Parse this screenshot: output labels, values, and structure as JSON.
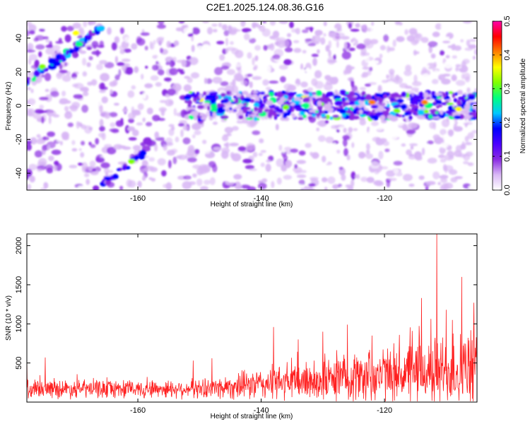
{
  "title": "C2E1.2025.124.08.36.G16",
  "chart_data": [
    {
      "type": "heatmap",
      "xlabel": "Height of straight line (km)",
      "ylabel": "Frequency (Hz)",
      "xlim": [
        -178,
        -105
      ],
      "ylim": [
        -50,
        50
      ],
      "xticks": [
        -160,
        -140,
        -120
      ],
      "yticks": [
        -40,
        -20,
        0,
        20,
        40
      ],
      "xtick_labels": [
        "-160",
        "-140",
        "-120"
      ],
      "ytick_labels": [
        "-40",
        "-20",
        "0",
        "20",
        "40"
      ],
      "colorbar": {
        "label": "Normalized spectral amplitude",
        "range": [
          0,
          0.5
        ],
        "ticks": [
          0,
          0.1,
          0.2,
          0.3,
          0.4,
          0.5
        ],
        "tick_labels": [
          "0.0",
          "0.1",
          "0.2",
          "0.3",
          "0.4",
          "0.5"
        ],
        "colors": [
          "#ffffff",
          "#d9b8f5",
          "#8a2be2",
          "#4b00ff",
          "#0000ff",
          "#00c8ff",
          "#00ff80",
          "#7fff00",
          "#ffff00",
          "#ff8000",
          "#ff0000",
          "#ff00aa"
        ]
      },
      "band": {
        "x_start": -152,
        "x_end": -105,
        "center_hz": 0,
        "halfwidth_hz": 8
      }
    },
    {
      "type": "line",
      "xlabel": "Height of straight line (km)",
      "ylabel": "SNR (10 * v/v)",
      "xlim": [
        -178,
        -105
      ],
      "ylim": [
        0,
        2150
      ],
      "xticks": [
        -160,
        -140,
        -120
      ],
      "yticks": [
        500,
        1000,
        1500,
        2000
      ],
      "xtick_labels": [
        "-160",
        "-140",
        "-120"
      ],
      "ytick_labels": [
        "500",
        "1000",
        "1500",
        "2000"
      ],
      "series": [
        {
          "color": "#ff2020"
        }
      ],
      "peaks": [
        {
          "x": -111.5,
          "y": 2150
        },
        {
          "x": -107.5,
          "y": 1600
        },
        {
          "x": -114,
          "y": 1330
        },
        {
          "x": -105.5,
          "y": 1270
        },
        {
          "x": -110,
          "y": 1180
        },
        {
          "x": -109,
          "y": 1050
        },
        {
          "x": -138,
          "y": 960
        },
        {
          "x": -126,
          "y": 990
        },
        {
          "x": -130,
          "y": 900
        },
        {
          "x": -122,
          "y": 850
        },
        {
          "x": -134,
          "y": 800
        },
        {
          "x": -175,
          "y": 570
        },
        {
          "x": -178,
          "y": 580
        },
        {
          "x": -151,
          "y": 530
        },
        {
          "x": -148,
          "y": 560
        }
      ]
    }
  ]
}
